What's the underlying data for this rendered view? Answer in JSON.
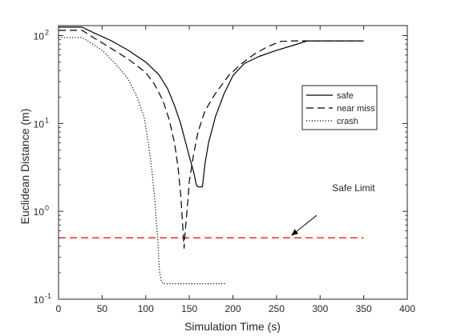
{
  "chart_data": {
    "type": "line",
    "xlabel": "Simulation Time (s)",
    "ylabel": "Euclidean Distance (m)",
    "xlim": [
      0,
      400
    ],
    "ylim": [
      0.1,
      130
    ],
    "yscale": "log",
    "grid": false,
    "legend_position": "right",
    "x_ticks": [
      0,
      50,
      100,
      150,
      200,
      250,
      300,
      350,
      400
    ],
    "y_ticks": [
      {
        "value": 0.1,
        "base": "10",
        "exp": "-1"
      },
      {
        "value": 1,
        "base": "10",
        "exp": "0"
      },
      {
        "value": 10,
        "base": "10",
        "exp": "1"
      },
      {
        "value": 100,
        "base": "10",
        "exp": "2"
      }
    ],
    "series": [
      {
        "name": "safe",
        "style": "solid",
        "color": "#000000",
        "points": [
          [
            0,
            125
          ],
          [
            27,
            125
          ],
          [
            40,
            108
          ],
          [
            60,
            88
          ],
          [
            80,
            68
          ],
          [
            100,
            50
          ],
          [
            115,
            36
          ],
          [
            125,
            25
          ],
          [
            133,
            16
          ],
          [
            140,
            10
          ],
          [
            145,
            6.5
          ],
          [
            150,
            4.2
          ],
          [
            155,
            2.8
          ],
          [
            158,
            2.0
          ],
          [
            160,
            1.9
          ],
          [
            165,
            1.9
          ],
          [
            168,
            3.5
          ],
          [
            172,
            6
          ],
          [
            180,
            12
          ],
          [
            190,
            22
          ],
          [
            200,
            35
          ],
          [
            213,
            48
          ],
          [
            230,
            58
          ],
          [
            250,
            68
          ],
          [
            270,
            78
          ],
          [
            285,
            87
          ],
          [
            300,
            87
          ],
          [
            320,
            87
          ],
          [
            345,
            87
          ]
        ]
      },
      {
        "name": "near miss",
        "style": "dashed",
        "color": "#000000",
        "points": [
          [
            0,
            115
          ],
          [
            10,
            115
          ],
          [
            27,
            115
          ],
          [
            40,
            95
          ],
          [
            60,
            72
          ],
          [
            80,
            54
          ],
          [
            100,
            38
          ],
          [
            110,
            28
          ],
          [
            120,
            18
          ],
          [
            127,
            11
          ],
          [
            133,
            6
          ],
          [
            137,
            3.2
          ],
          [
            140,
            1.6
          ],
          [
            142,
            0.8
          ],
          [
            143,
            0.55
          ],
          [
            144,
            0.38
          ],
          [
            145,
            0.55
          ],
          [
            148,
            1.2
          ],
          [
            150,
            2.2
          ],
          [
            155,
            4.5
          ],
          [
            160,
            8
          ],
          [
            168,
            14
          ],
          [
            180,
            22
          ],
          [
            195,
            35
          ],
          [
            210,
            48
          ],
          [
            225,
            62
          ],
          [
            240,
            75
          ],
          [
            255,
            86
          ],
          [
            270,
            87
          ],
          [
            300,
            87
          ],
          [
            350,
            87
          ]
        ]
      },
      {
        "name": "crash",
        "style": "dotted",
        "color": "#000000",
        "points": [
          [
            0,
            95
          ],
          [
            27,
            95
          ],
          [
            35,
            85
          ],
          [
            50,
            68
          ],
          [
            65,
            48
          ],
          [
            80,
            32
          ],
          [
            90,
            20
          ],
          [
            98,
            12
          ],
          [
            103,
            6
          ],
          [
            107,
            3
          ],
          [
            110,
            1.5
          ],
          [
            112,
            0.8
          ],
          [
            114,
            0.45
          ],
          [
            115,
            0.28
          ],
          [
            116,
            0.2
          ],
          [
            118,
            0.16
          ],
          [
            120,
            0.15
          ],
          [
            130,
            0.15
          ],
          [
            150,
            0.15
          ],
          [
            170,
            0.15
          ],
          [
            192,
            0.15
          ]
        ]
      }
    ],
    "reference_line": {
      "y": 0.5,
      "x_start": 0,
      "x_end": 350,
      "color": "#ff0000",
      "style": "dashed"
    },
    "annotations": [
      {
        "text": "Safe Limit",
        "text_x": 300,
        "text_y": 1.7,
        "arrow_from_x": 296,
        "arrow_from_y": 0.9,
        "arrow_to_x": 267,
        "arrow_to_y": 0.53
      }
    ]
  }
}
